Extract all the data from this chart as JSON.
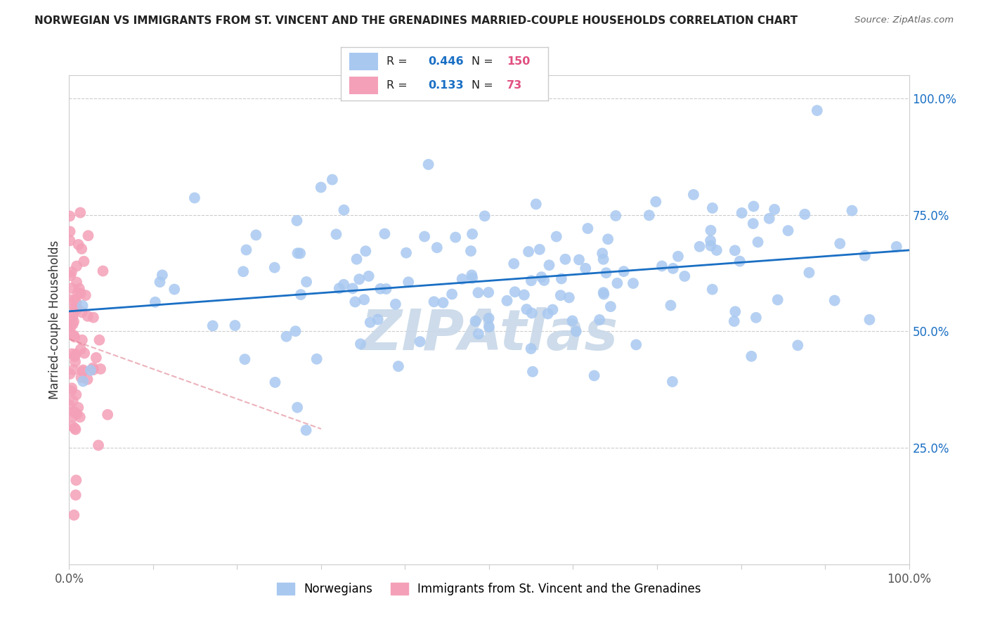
{
  "title": "NORWEGIAN VS IMMIGRANTS FROM ST. VINCENT AND THE GRENADINES MARRIED-COUPLE HOUSEHOLDS CORRELATION CHART",
  "source": "Source: ZipAtlas.com",
  "ylabel": "Married-couple Households",
  "blue_R": 0.446,
  "blue_N": 150,
  "pink_R": 0.133,
  "pink_N": 73,
  "blue_color": "#a8c8f0",
  "pink_color": "#f4a0b8",
  "blue_line_color": "#1a6fc4",
  "pink_line_color": "#e08090",
  "title_color": "#222222",
  "legend_R_color": "#1a6fc4",
  "legend_N_color": "#e05080",
  "watermark": "ZIPAtlas",
  "watermark_color": "#c8d8e8",
  "right_tick_color": "#1a6fc4",
  "xlim": [
    0.0,
    1.0
  ],
  "ylim": [
    0.0,
    1.05
  ],
  "right_yticks": [
    0.25,
    0.5,
    0.75,
    1.0
  ],
  "right_yticklabels": [
    "25.0%",
    "50.0%",
    "75.0%",
    "100.0%"
  ],
  "blue_seed": 42,
  "pink_seed": 7
}
